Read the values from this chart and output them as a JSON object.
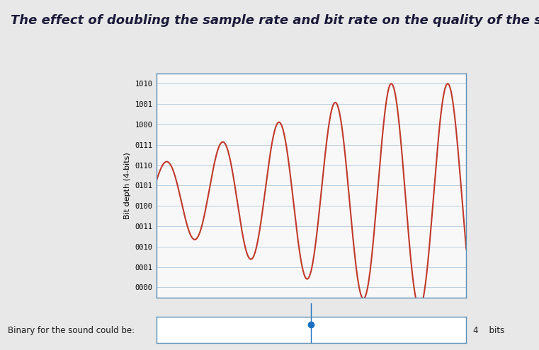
{
  "title": "The effect of doubling the sample rate and bit rate on the quality of the sound and file s",
  "ylabel": "Bit depth (4-bits)",
  "ytick_labels": [
    "0000",
    "0001",
    "0010",
    "0011",
    "0100",
    "0101",
    "0110",
    "0111",
    "1000",
    "1001",
    "1010"
  ],
  "ytick_values": [
    0,
    1,
    2,
    3,
    4,
    5,
    6,
    7,
    8,
    9,
    10
  ],
  "line_color": "#c0392b",
  "outer_bg": "#e8e8e8",
  "plot_bg": "#f8f8f8",
  "grid_color": "#9dbcd4",
  "title_color": "#1a1a3a",
  "subtitle_bottom": "Binary for the sound could be:",
  "title_fontsize": 13,
  "ylabel_fontsize": 8,
  "bottom_bar_text": "4    bits"
}
